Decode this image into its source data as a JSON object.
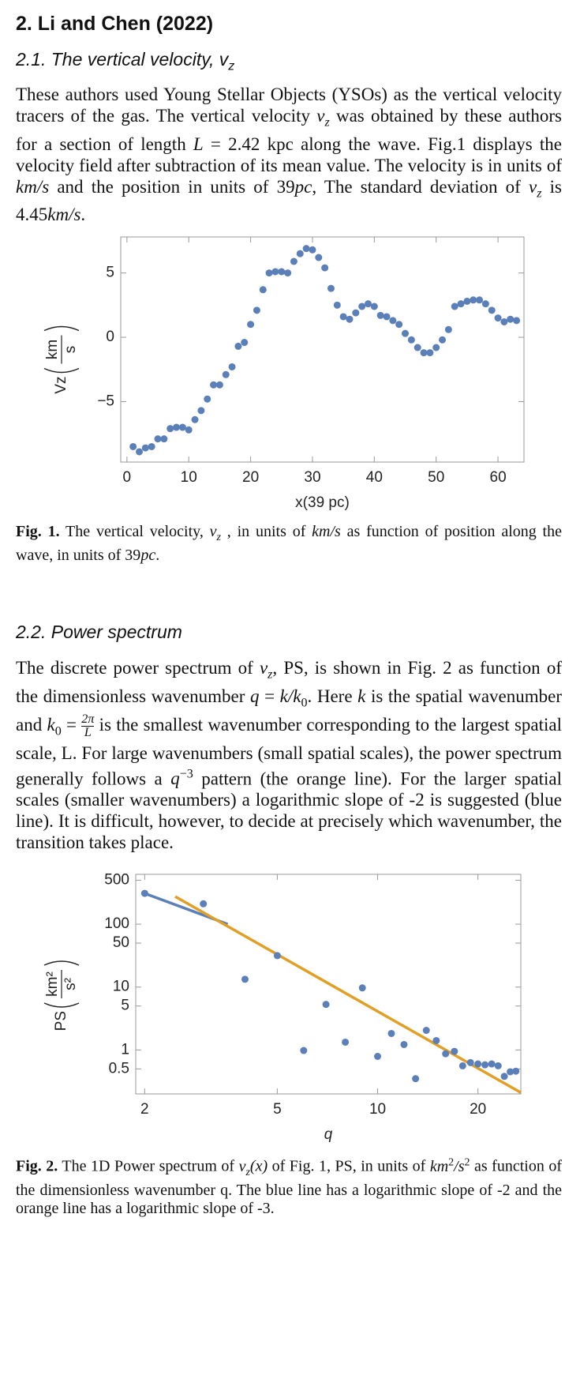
{
  "title": "2. Li and Chen (2022)",
  "section1": {
    "heading": [
      "2.1. The vertical velocity, ",
      {
        "m": "v",
        "sub": "z"
      }
    ],
    "paragraph": [
      "These authors used Young Stellar Objects (YSOs) as the vertical velocity tracers of the gas. The vertical velocity ",
      {
        "m": "v",
        "sub": "z"
      },
      " was obtained by these authors for a section of length ",
      {
        "m": "L"
      },
      " = 2.42 kpc along the wave. Fig.1 displays the velocity field after subtraction of its mean value. The velocity is in units of ",
      {
        "m": "km/s"
      },
      " and the position in units of 39",
      {
        "m": "pc"
      },
      ", The standard deviation of ",
      {
        "m": "v",
        "sub": "z"
      },
      " is 4.45",
      {
        "m": "km/s"
      },
      "."
    ],
    "caption": [
      {
        "b": "Fig. 1."
      },
      " The vertical velocity, ",
      {
        "m": "v",
        "sub": "z"
      },
      " , in units of ",
      {
        "m": "km/s"
      },
      " as function of position along the wave, in units of 39",
      {
        "m": "pc"
      },
      "."
    ]
  },
  "section2": {
    "heading": [
      "2.2. Power spectrum"
    ],
    "paragraph": [
      "The discrete power spectrum of ",
      {
        "m": "v",
        "sub": "z"
      },
      ", PS, is shown in Fig. 2 as function of the dimensionless wavenumber ",
      {
        "m": "q"
      },
      " = ",
      {
        "m": "k/k",
        "sub": "0"
      },
      ". Here ",
      {
        "m": "k"
      },
      " is the spatial wavenumber and ",
      {
        "m": "k",
        "sub": "0"
      },
      " = ",
      {
        "num": "2π",
        "den": "L"
      },
      " is the smallest wavenumber corresponding to the largest spatial scale, L. For large wavenumbers (small spatial scales), the power spectrum generally follows a ",
      {
        "m": "q",
        "sup": "−3"
      },
      " pattern (the orange line). For the larger spatial scales (smaller wavenumbers) a logarithmic slope of -2 is suggested (blue line). It is difficult, however, to decide at precisely which wavenumber, the transition takes place."
    ],
    "caption": [
      {
        "b": "Fig. 2."
      },
      " The 1D Power spectrum of ",
      {
        "m": "v",
        "sub": "z"
      },
      {
        "m": "(x)"
      },
      " of Fig. 1, PS, in units of ",
      {
        "m": "km",
        "sup": "2"
      },
      {
        "m": "/s",
        "sup": "2"
      },
      " as function of the dimensionless wavenumber q. The blue line has a logarithmic slope of -2 and the orange line has a logarithmic slope of -3."
    ]
  },
  "chart_data": [
    {
      "type": "scatter",
      "xlabel": "x(39 pc)",
      "ylabel": "Vz",
      "ylabel_num": "km",
      "ylabel_den": "s",
      "color": "#5b7fb9",
      "x": [
        1,
        2,
        3,
        4,
        5,
        6,
        7,
        8,
        9,
        10,
        11,
        12,
        13,
        14,
        15,
        16,
        17,
        18,
        19,
        20,
        21,
        22,
        23,
        24,
        25,
        26,
        27,
        28,
        29,
        30,
        31,
        32,
        33,
        34,
        35,
        36,
        37,
        38,
        39,
        40,
        41,
        42,
        43,
        44,
        45,
        46,
        47,
        48,
        49,
        50,
        51,
        52,
        53,
        54,
        55,
        56,
        57,
        58,
        59,
        60,
        61,
        62,
        63
      ],
      "values": [
        -8.5,
        -8.9,
        -8.6,
        -8.5,
        -7.9,
        -7.9,
        -7.1,
        -7.0,
        -7.0,
        -7.2,
        -6.4,
        -5.7,
        -4.8,
        -3.7,
        -3.7,
        -2.9,
        -2.3,
        -0.7,
        -0.4,
        1.0,
        2.1,
        3.7,
        5.0,
        5.1,
        5.1,
        5.0,
        5.9,
        6.5,
        6.9,
        6.8,
        6.2,
        5.4,
        3.8,
        2.5,
        1.6,
        1.4,
        1.9,
        2.4,
        2.6,
        2.4,
        1.7,
        1.6,
        1.3,
        1.0,
        0.3,
        -0.2,
        -0.8,
        -1.2,
        -1.2,
        -0.8,
        -0.2,
        0.6,
        2.4,
        2.6,
        2.8,
        2.9,
        2.9,
        2.6,
        2.1,
        1.5,
        1.2,
        1.4,
        1.3
      ],
      "xlim": [
        -1,
        64.2
      ],
      "ylim": [
        -9.7,
        7.8
      ],
      "xticks": [
        0,
        10,
        20,
        30,
        40,
        50,
        60
      ],
      "yticks": [
        {
          "value": -5,
          "label": "−5"
        },
        0,
        5
      ]
    },
    {
      "type": "scatter",
      "xlabel": "q",
      "ylabel": "PS",
      "ylabel_num": "km²",
      "ylabel_den": "s²",
      "xlog": true,
      "ylog": true,
      "color": "#5b7fb9",
      "x": [
        2,
        3,
        4,
        5,
        6,
        7,
        8,
        9,
        10,
        11,
        12,
        13,
        14,
        15,
        16,
        17,
        18,
        19,
        20,
        21,
        22,
        23,
        24,
        25,
        26
      ],
      "values": [
        309,
        211,
        13.3,
        31.6,
        0.98,
        5.3,
        1.33,
        9.7,
        0.79,
        1.83,
        1.22,
        0.35,
        2.05,
        1.41,
        0.87,
        0.95,
        0.56,
        0.63,
        0.6,
        0.58,
        0.6,
        0.56,
        0.38,
        0.45,
        0.46
      ],
      "lines": [
        {
          "color": "#5b7fb9",
          "x": [
            2,
            3.55
          ],
          "values": [
            309,
            100
          ]
        },
        {
          "color": "#e09f26",
          "x": [
            2.47,
            26.9
          ],
          "values": [
            275,
            0.21
          ]
        }
      ],
      "xlim": [
        1.88,
        26.9
      ],
      "ylim": [
        0.2,
        620
      ],
      "xticks": [
        2,
        5,
        10,
        20
      ],
      "yticks": [
        500,
        100,
        50,
        10,
        5,
        1,
        0.5
      ]
    }
  ]
}
